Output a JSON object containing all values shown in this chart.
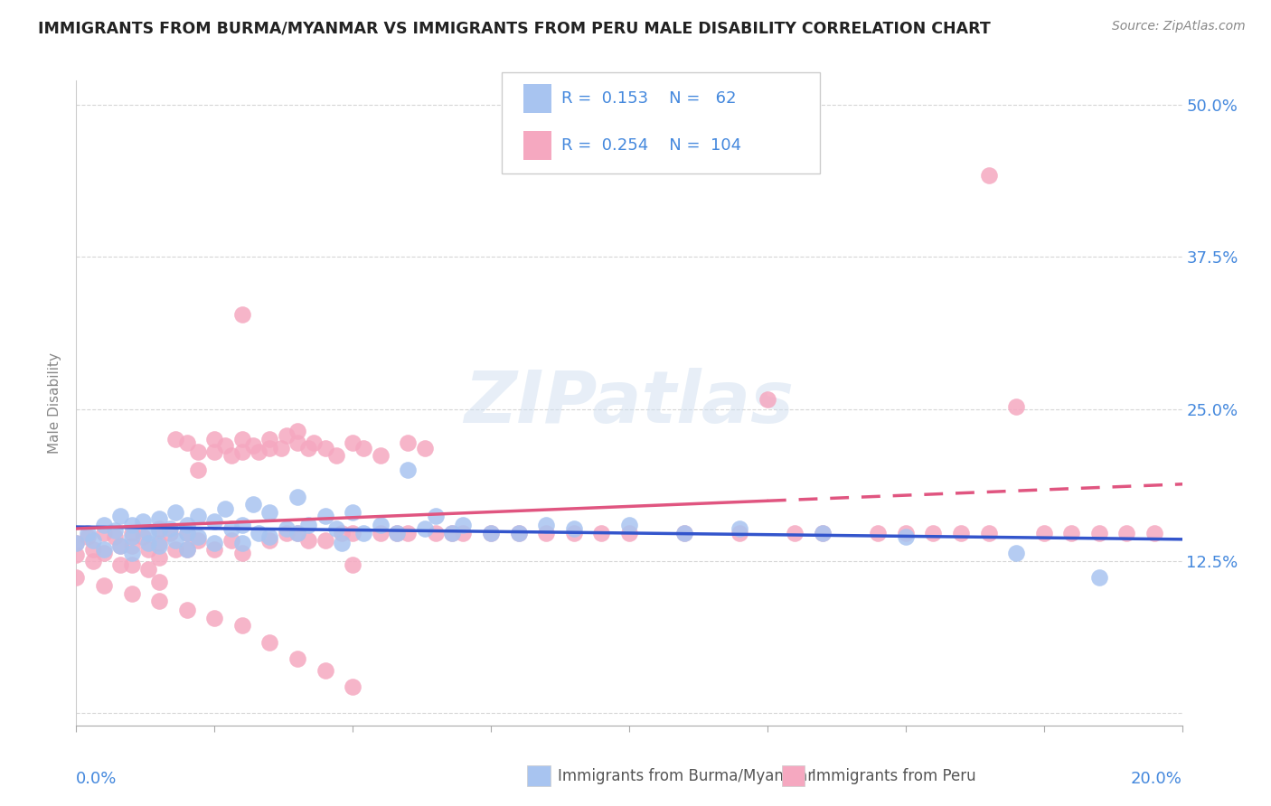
{
  "title": "IMMIGRANTS FROM BURMA/MYANMAR VS IMMIGRANTS FROM PERU MALE DISABILITY CORRELATION CHART",
  "source": "Source: ZipAtlas.com",
  "ylabel": "Male Disability",
  "xlim": [
    0.0,
    0.2
  ],
  "ylim": [
    -0.01,
    0.52
  ],
  "color_burma": "#a8c4f0",
  "color_peru": "#f5a8c0",
  "line_color_burma": "#3355cc",
  "line_color_peru": "#e05580",
  "legend_R_burma": "0.153",
  "legend_N_burma": "62",
  "legend_R_peru": "0.254",
  "legend_N_peru": "104",
  "ytick_positions": [
    0.0,
    0.125,
    0.25,
    0.375,
    0.5
  ],
  "ytick_labels_right": [
    "",
    "12.5%",
    "25.0%",
    "37.5%",
    "50.0%"
  ],
  "burma_x": [
    0.0,
    0.002,
    0.003,
    0.005,
    0.005,
    0.007,
    0.008,
    0.008,
    0.01,
    0.01,
    0.01,
    0.012,
    0.013,
    0.013,
    0.015,
    0.015,
    0.015,
    0.017,
    0.018,
    0.018,
    0.02,
    0.02,
    0.02,
    0.022,
    0.022,
    0.025,
    0.025,
    0.027,
    0.028,
    0.03,
    0.03,
    0.032,
    0.033,
    0.035,
    0.035,
    0.038,
    0.04,
    0.04,
    0.042,
    0.045,
    0.047,
    0.048,
    0.05,
    0.052,
    0.055,
    0.058,
    0.06,
    0.063,
    0.065,
    0.068,
    0.07,
    0.075,
    0.08,
    0.085,
    0.09,
    0.1,
    0.11,
    0.12,
    0.135,
    0.15,
    0.17,
    0.185
  ],
  "burma_y": [
    0.14,
    0.148,
    0.142,
    0.155,
    0.135,
    0.15,
    0.162,
    0.138,
    0.155,
    0.145,
    0.132,
    0.158,
    0.148,
    0.14,
    0.16,
    0.15,
    0.138,
    0.152,
    0.165,
    0.142,
    0.155,
    0.148,
    0.135,
    0.162,
    0.145,
    0.158,
    0.14,
    0.168,
    0.152,
    0.155,
    0.14,
    0.172,
    0.148,
    0.165,
    0.145,
    0.152,
    0.178,
    0.148,
    0.155,
    0.162,
    0.152,
    0.14,
    0.165,
    0.148,
    0.155,
    0.148,
    0.2,
    0.152,
    0.162,
    0.148,
    0.155,
    0.148,
    0.148,
    0.155,
    0.152,
    0.155,
    0.148,
    0.152,
    0.148,
    0.145,
    0.132,
    0.112
  ],
  "peru_x": [
    0.0,
    0.0,
    0.002,
    0.003,
    0.003,
    0.005,
    0.005,
    0.007,
    0.008,
    0.008,
    0.01,
    0.01,
    0.01,
    0.012,
    0.013,
    0.013,
    0.015,
    0.015,
    0.015,
    0.015,
    0.017,
    0.018,
    0.018,
    0.02,
    0.02,
    0.02,
    0.022,
    0.022,
    0.022,
    0.025,
    0.025,
    0.025,
    0.027,
    0.028,
    0.028,
    0.03,
    0.03,
    0.03,
    0.03,
    0.032,
    0.033,
    0.035,
    0.035,
    0.035,
    0.037,
    0.038,
    0.038,
    0.04,
    0.04,
    0.04,
    0.042,
    0.042,
    0.043,
    0.045,
    0.045,
    0.047,
    0.048,
    0.05,
    0.05,
    0.05,
    0.052,
    0.055,
    0.055,
    0.058,
    0.06,
    0.06,
    0.063,
    0.065,
    0.068,
    0.07,
    0.075,
    0.08,
    0.085,
    0.09,
    0.095,
    0.1,
    0.11,
    0.12,
    0.13,
    0.135,
    0.145,
    0.15,
    0.155,
    0.16,
    0.165,
    0.17,
    0.175,
    0.18,
    0.185,
    0.19,
    0.195,
    0.0,
    0.005,
    0.01,
    0.015,
    0.02,
    0.025,
    0.03,
    0.035,
    0.04,
    0.045,
    0.05,
    0.125,
    0.165
  ],
  "peru_y": [
    0.14,
    0.13,
    0.145,
    0.135,
    0.125,
    0.148,
    0.132,
    0.145,
    0.138,
    0.122,
    0.148,
    0.138,
    0.122,
    0.145,
    0.135,
    0.118,
    0.152,
    0.14,
    0.128,
    0.108,
    0.148,
    0.135,
    0.225,
    0.148,
    0.135,
    0.222,
    0.215,
    0.2,
    0.142,
    0.225,
    0.215,
    0.135,
    0.22,
    0.212,
    0.142,
    0.328,
    0.225,
    0.215,
    0.132,
    0.22,
    0.215,
    0.225,
    0.218,
    0.142,
    0.218,
    0.228,
    0.148,
    0.232,
    0.222,
    0.148,
    0.218,
    0.142,
    0.222,
    0.218,
    0.142,
    0.212,
    0.148,
    0.222,
    0.148,
    0.122,
    0.218,
    0.148,
    0.212,
    0.148,
    0.222,
    0.148,
    0.218,
    0.148,
    0.148,
    0.148,
    0.148,
    0.148,
    0.148,
    0.148,
    0.148,
    0.148,
    0.148,
    0.148,
    0.148,
    0.148,
    0.148,
    0.148,
    0.148,
    0.148,
    0.148,
    0.252,
    0.148,
    0.148,
    0.148,
    0.148,
    0.148,
    0.112,
    0.105,
    0.098,
    0.092,
    0.085,
    0.078,
    0.072,
    0.058,
    0.045,
    0.035,
    0.022,
    0.258,
    0.442
  ]
}
